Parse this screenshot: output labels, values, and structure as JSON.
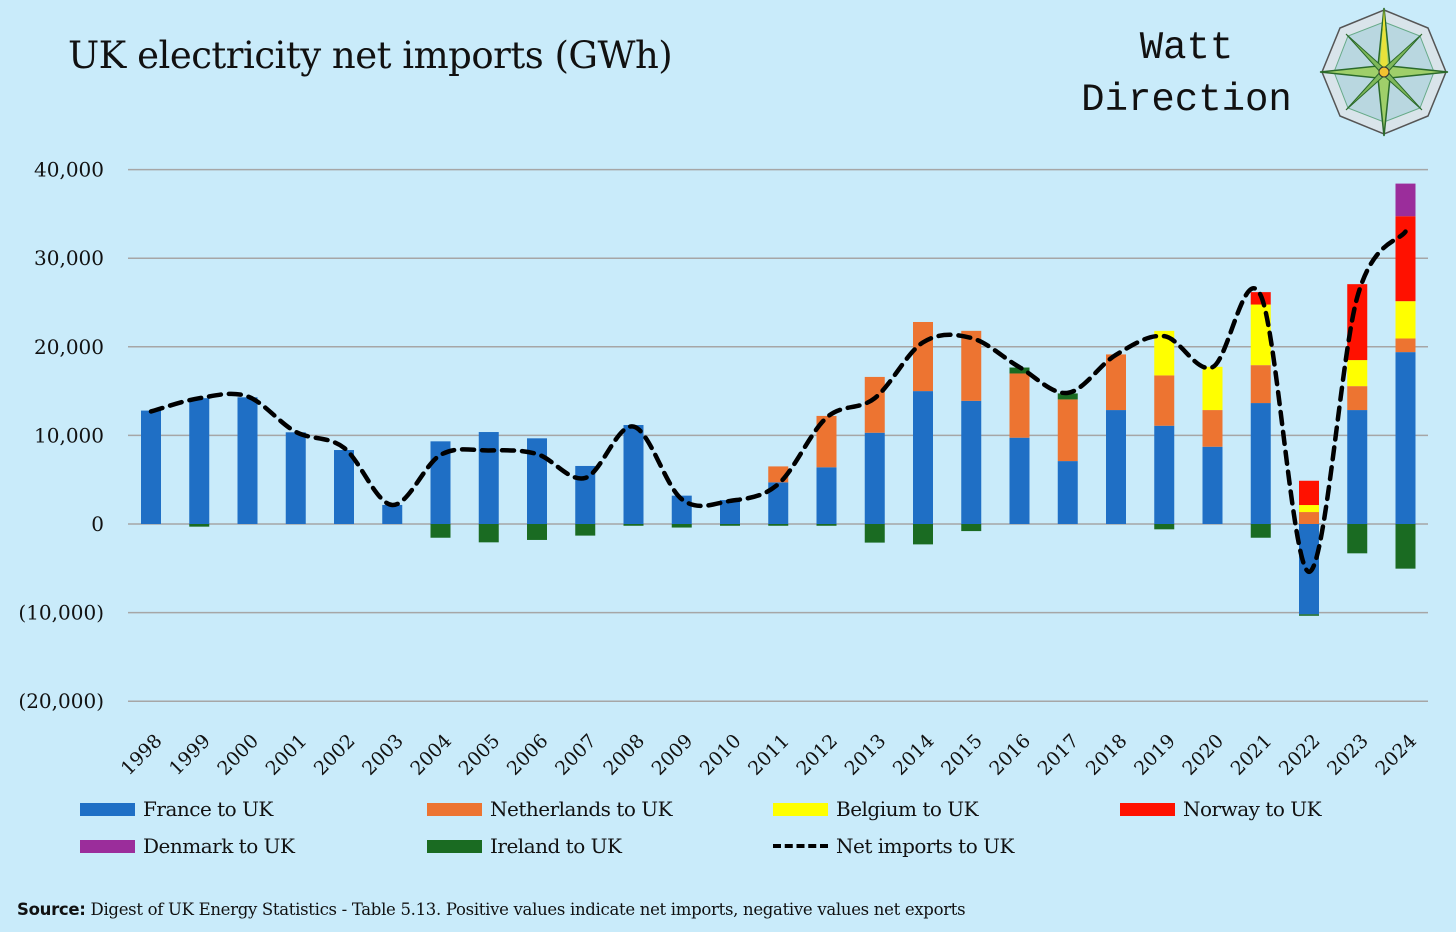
{
  "header": {
    "title": "UK electricity net imports (GWh)",
    "logo_line1": "Watt",
    "logo_line2": "Direction"
  },
  "source": {
    "label": "Source:",
    "text": "Digest of UK Energy Statistics - Table 5.13. Positive values indicate net imports, negative values net exports"
  },
  "chart_data": {
    "type": "bar",
    "stacked": true,
    "title": "UK electricity net imports (GWh)",
    "xlabel": "",
    "ylabel": "GWh",
    "ylim": [
      -20000,
      40000
    ],
    "yticks": [
      40000,
      30000,
      20000,
      10000,
      0,
      -10000,
      -20000
    ],
    "ytick_labels": [
      "40,000",
      "30,000",
      "20,000",
      "10,000",
      "0",
      "(10,000)",
      "(20,000)"
    ],
    "grid": true,
    "legend_placement": "bottom",
    "categories": [
      "1998",
      "1999",
      "2000",
      "2001",
      "2002",
      "2003",
      "2004",
      "2005",
      "2006",
      "2007",
      "2008",
      "2009",
      "2010",
      "2011",
      "2012",
      "2013",
      "2014",
      "2015",
      "2016",
      "2017",
      "2018",
      "2019",
      "2020",
      "2021",
      "2022",
      "2023",
      "2024"
    ],
    "series": [
      {
        "name": "France to UK",
        "color": "#1f6fc5",
        "values": [
          12800,
          14200,
          14300,
          10350,
          8350,
          2150,
          9330,
          10380,
          9670,
          6550,
          11170,
          3200,
          2700,
          4700,
          6400,
          10300,
          15000,
          13900,
          9740,
          7100,
          12860,
          11090,
          8720,
          13650,
          -10190,
          12860,
          19400
        ]
      },
      {
        "name": "Netherlands to UK",
        "color": "#ed7431",
        "values": [
          0,
          0,
          0,
          0,
          0,
          0,
          0,
          0,
          0,
          0,
          0,
          0,
          0,
          1800,
          5800,
          6300,
          7800,
          7900,
          7250,
          6960,
          6280,
          5680,
          4140,
          4280,
          1350,
          2700,
          1540
        ]
      },
      {
        "name": "Belgium to UK",
        "color": "#ffff00",
        "values": [
          0,
          0,
          0,
          0,
          0,
          0,
          0,
          0,
          0,
          0,
          0,
          0,
          0,
          0,
          0,
          0,
          0,
          0,
          0,
          0,
          0,
          5030,
          4880,
          6840,
          790,
          2940,
          4210
        ]
      },
      {
        "name": "Norway to UK",
        "color": "#ff1100",
        "values": [
          0,
          0,
          0,
          0,
          0,
          0,
          0,
          0,
          0,
          0,
          0,
          0,
          0,
          0,
          0,
          0,
          0,
          0,
          0,
          0,
          0,
          0,
          0,
          1400,
          2740,
          8570,
          9590
        ]
      },
      {
        "name": "Denmark to UK",
        "color": "#9b2d9b",
        "values": [
          0,
          0,
          0,
          0,
          0,
          0,
          0,
          0,
          0,
          0,
          0,
          0,
          0,
          0,
          0,
          0,
          0,
          0,
          0,
          0,
          0,
          0,
          0,
          0,
          0,
          0,
          3680
        ]
      },
      {
        "name": "Ireland to UK",
        "color": "#1a6b22",
        "values": [
          0,
          -300,
          0,
          0,
          0,
          0,
          -1550,
          -2070,
          -1800,
          -1310,
          -200,
          -400,
          -200,
          -200,
          -200,
          -2100,
          -2300,
          -800,
          670,
          680,
          0,
          -600,
          0,
          -1550,
          -100,
          -3310,
          -5040
        ]
      }
    ],
    "line_series": {
      "name": "Net imports to UK",
      "color": "#000000",
      "values": [
        12700,
        14200,
        14400,
        10400,
        8600,
        2150,
        7800,
        8300,
        7900,
        5200,
        11000,
        2800,
        2600,
        4500,
        12000,
        14200,
        20500,
        21000,
        17700,
        14800,
        19100,
        21200,
        17700,
        25800,
        -5400,
        25600,
        33000
      ]
    }
  },
  "legend": [
    {
      "label": "France to UK",
      "color": "#1f6fc5"
    },
    {
      "label": "Netherlands to UK",
      "color": "#ed7431"
    },
    {
      "label": "Belgium to UK",
      "color": "#ffff00"
    },
    {
      "label": "Norway to UK",
      "color": "#ff1100"
    },
    {
      "label": "Denmark to UK",
      "color": "#9b2d9b"
    },
    {
      "label": "Ireland to UK",
      "color": "#1a6b22"
    },
    {
      "label": "Net imports to UK",
      "color": "#000000"
    }
  ]
}
